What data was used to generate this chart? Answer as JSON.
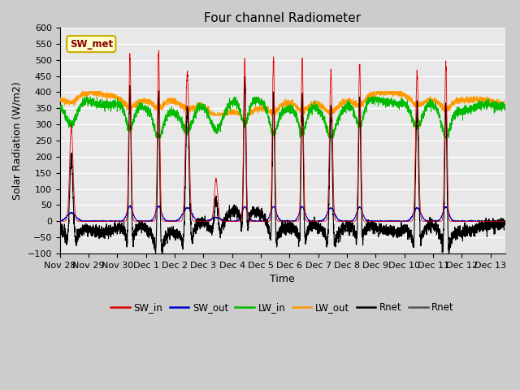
{
  "title": "Four channel Radiometer",
  "xlabel": "Time",
  "ylabel": "Solar Radiation (W/m2)",
  "ylim": [
    -100,
    550
  ],
  "station_label": "SW_met",
  "xtick_labels": [
    "Nov 28",
    "Nov 29",
    "Nov 30",
    "Dec 1",
    "Dec 2",
    "Dec 3",
    "Dec 4",
    "Dec 5",
    "Dec 6",
    "Dec 7",
    "Dec 8",
    "Dec 9",
    "Dec 10",
    "Dec 11",
    "Dec 12",
    "Dec 13"
  ],
  "sw_in_peaks": [
    290,
    0,
    515,
    525,
    465,
    130,
    500,
    505,
    500,
    460,
    490,
    0,
    460,
    490,
    0,
    0
  ],
  "sw_in_sigma": [
    0.06,
    0.0,
    0.04,
    0.04,
    0.06,
    0.06,
    0.04,
    0.04,
    0.04,
    0.05,
    0.04,
    0.0,
    0.05,
    0.04,
    0.0,
    0.0
  ],
  "sw_in_center": [
    0.4,
    0.5,
    0.44,
    0.44,
    0.44,
    0.44,
    0.44,
    0.44,
    0.44,
    0.44,
    0.44,
    0.5,
    0.44,
    0.44,
    0.5,
    0.5
  ],
  "colors": {
    "sw_in": "#dd0000",
    "sw_out": "#0000cc",
    "lw_in": "#00bb00",
    "lw_out": "#ff9900",
    "rnet": "#000000",
    "bg_fig": "#cccccc",
    "bg_ax": "#e8e8e8",
    "grid": "#ffffff",
    "station_box_face": "#ffffcc",
    "station_box_edge": "#ccaa00",
    "station_text": "#880000"
  },
  "figsize": [
    6.4,
    4.8
  ],
  "dpi": 100
}
